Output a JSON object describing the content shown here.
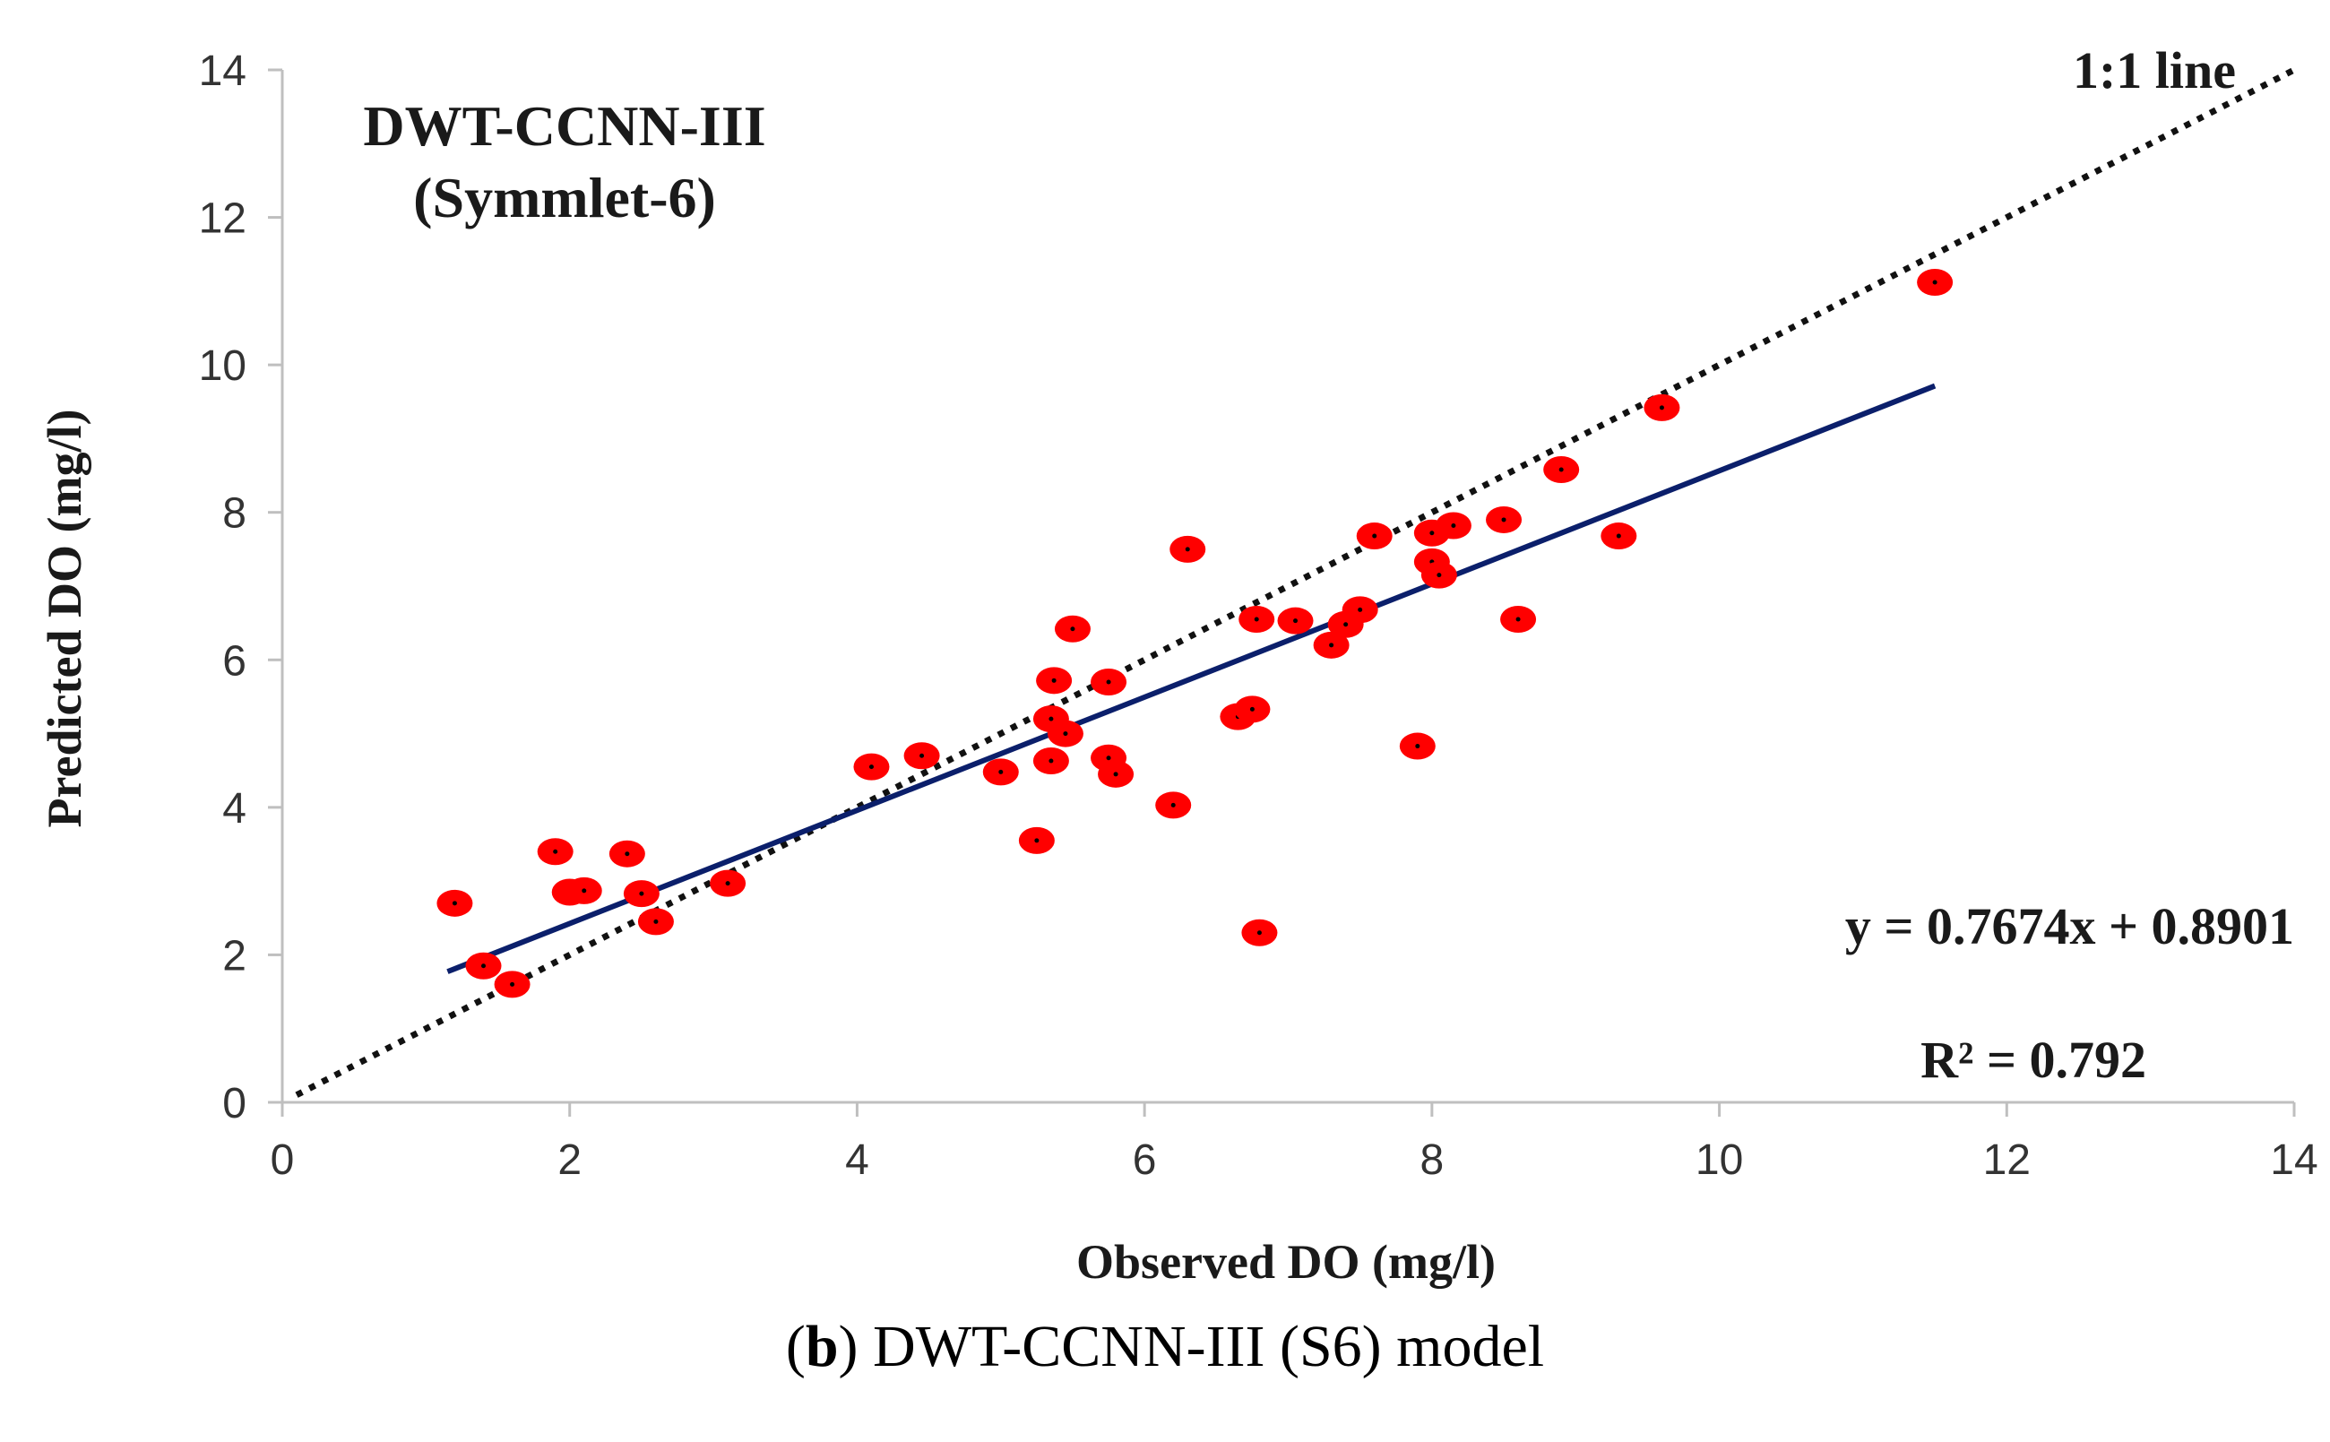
{
  "chart_data": {
    "type": "scatter",
    "title_lines": [
      "DWT-CCNN-III",
      "(Symmlet-6)"
    ],
    "xlabel": "Observed DO (mg/l)",
    "ylabel": "Predicted DO (mg/l)",
    "xlim": [
      0,
      14
    ],
    "ylim": [
      0,
      14
    ],
    "xticks": [
      0,
      2,
      4,
      6,
      8,
      10,
      12,
      14
    ],
    "yticks": [
      0,
      2,
      4,
      6,
      8,
      10,
      12,
      14
    ],
    "xtick_labels": [
      "0",
      "2",
      "4",
      "6",
      "8",
      "10",
      "12",
      "14"
    ],
    "ytick_labels": [
      "0",
      "2",
      "4",
      "6",
      "8",
      "10",
      "12",
      "14"
    ],
    "grid": false,
    "colors": {
      "points": "#ff0000",
      "point_center": "#000000",
      "fit_line": "#0b1f6b",
      "one_to_one": "#111111",
      "axis": "#bfbfbf"
    },
    "series": [
      {
        "name": "observations",
        "points": [
          {
            "x": 1.2,
            "y": 2.7
          },
          {
            "x": 1.4,
            "y": 1.85
          },
          {
            "x": 1.6,
            "y": 1.6
          },
          {
            "x": 1.9,
            "y": 3.4
          },
          {
            "x": 2.0,
            "y": 2.85
          },
          {
            "x": 2.1,
            "y": 2.87
          },
          {
            "x": 2.4,
            "y": 3.37
          },
          {
            "x": 2.5,
            "y": 2.83
          },
          {
            "x": 2.6,
            "y": 2.45
          },
          {
            "x": 3.1,
            "y": 2.97
          },
          {
            "x": 4.1,
            "y": 4.55
          },
          {
            "x": 4.45,
            "y": 4.7
          },
          {
            "x": 5.0,
            "y": 4.48
          },
          {
            "x": 5.25,
            "y": 3.55
          },
          {
            "x": 5.35,
            "y": 4.63
          },
          {
            "x": 5.35,
            "y": 5.2
          },
          {
            "x": 5.37,
            "y": 5.72
          },
          {
            "x": 5.45,
            "y": 5.0
          },
          {
            "x": 5.5,
            "y": 6.42
          },
          {
            "x": 5.75,
            "y": 5.7
          },
          {
            "x": 5.75,
            "y": 4.67
          },
          {
            "x": 5.8,
            "y": 4.45
          },
          {
            "x": 6.2,
            "y": 4.03
          },
          {
            "x": 6.3,
            "y": 7.5
          },
          {
            "x": 6.65,
            "y": 5.23
          },
          {
            "x": 6.75,
            "y": 5.33
          },
          {
            "x": 6.78,
            "y": 6.55
          },
          {
            "x": 6.8,
            "y": 2.3
          },
          {
            "x": 7.05,
            "y": 6.53
          },
          {
            "x": 7.3,
            "y": 6.2
          },
          {
            "x": 7.4,
            "y": 6.48
          },
          {
            "x": 7.5,
            "y": 6.68
          },
          {
            "x": 7.6,
            "y": 7.68
          },
          {
            "x": 7.9,
            "y": 4.83
          },
          {
            "x": 8.0,
            "y": 7.72
          },
          {
            "x": 8.0,
            "y": 7.33
          },
          {
            "x": 8.05,
            "y": 7.15
          },
          {
            "x": 8.15,
            "y": 7.82
          },
          {
            "x": 8.5,
            "y": 7.9
          },
          {
            "x": 8.6,
            "y": 6.55
          },
          {
            "x": 8.9,
            "y": 8.58
          },
          {
            "x": 9.3,
            "y": 7.68
          },
          {
            "x": 9.6,
            "y": 9.42
          },
          {
            "x": 11.5,
            "y": 11.12
          }
        ]
      }
    ],
    "fit_line": {
      "label": "y = 0.7674x + 0.8901",
      "slope": 0.7674,
      "intercept": 0.8901,
      "x_range": [
        1.15,
        11.5
      ]
    },
    "r2_label": "R² = 0.792",
    "one_to_one": {
      "label": "1:1 line",
      "x_range": [
        0.1,
        14
      ]
    }
  },
  "caption": {
    "prefix": "(",
    "bold": "b",
    "rest": ") DWT-CCNN-III (S6) model"
  }
}
